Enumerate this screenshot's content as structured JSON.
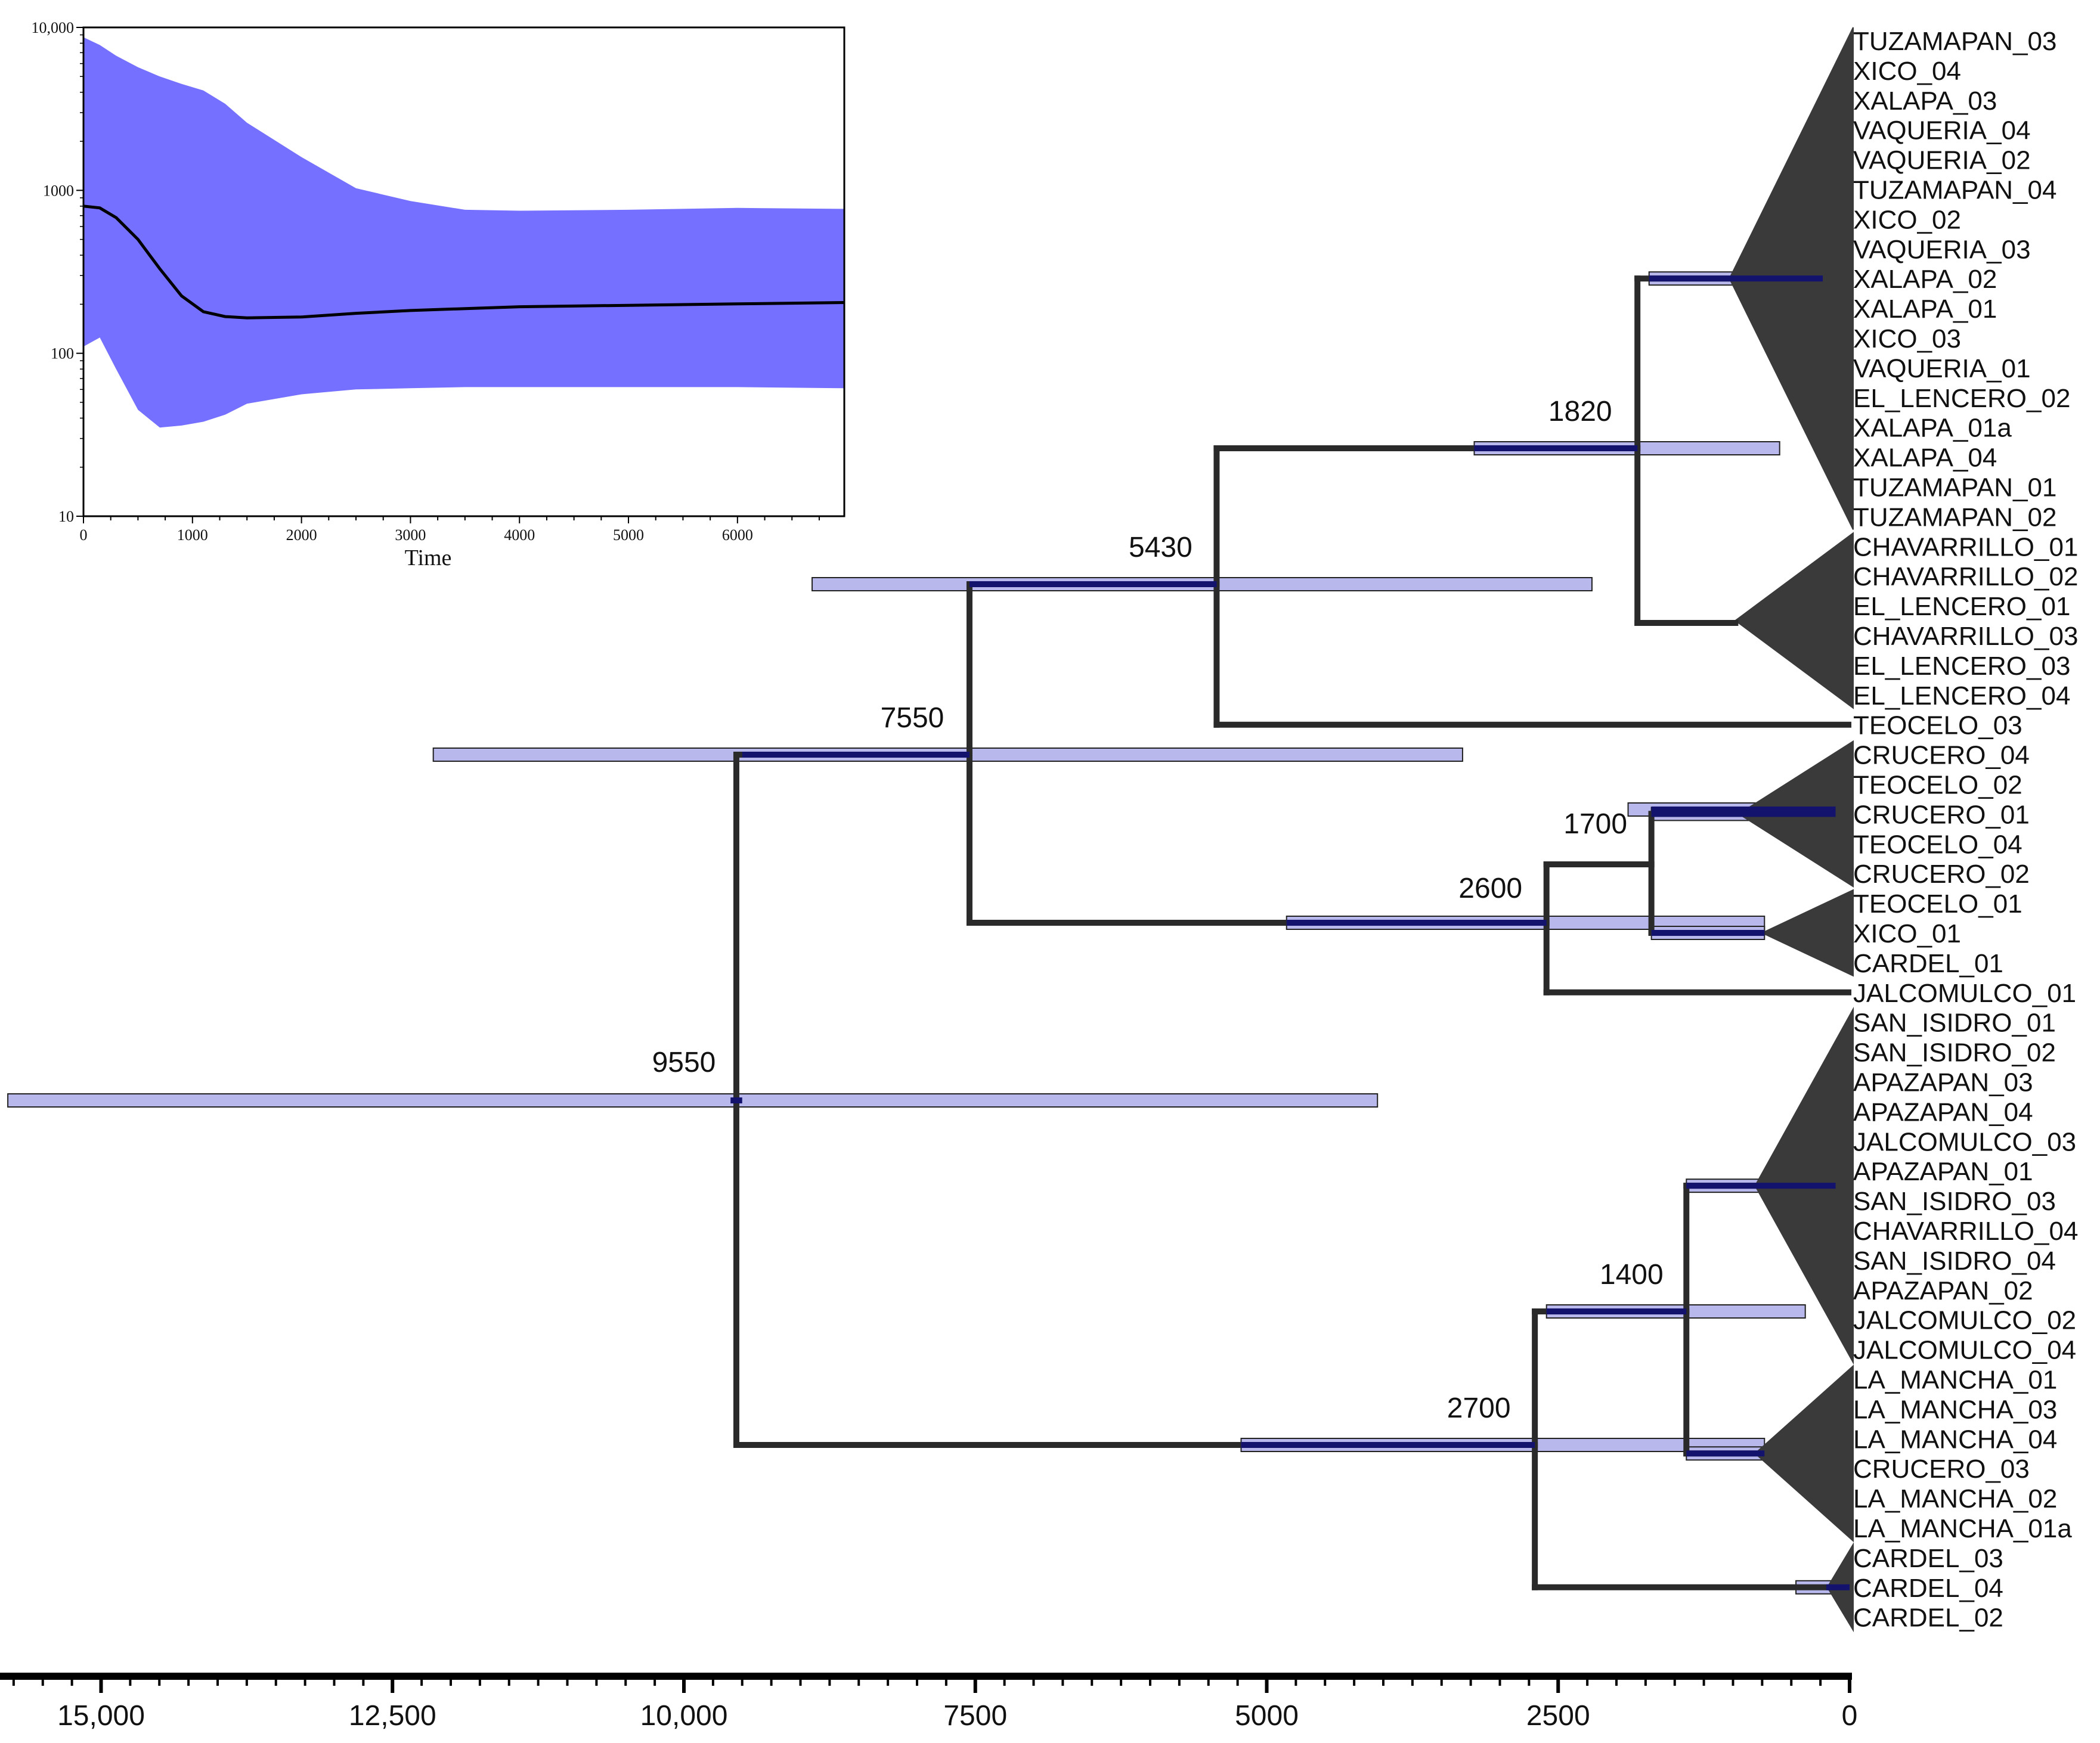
{
  "colors": {
    "branch": "#2a2a2a",
    "hpd_light": "#b8b8ec",
    "hpd_dark": "#13136e",
    "hpd_border": "#222222",
    "clade": "#3a3a3a",
    "bsp_fill": "#7570ff",
    "bsp_line": "#000000",
    "axis": "#000000"
  },
  "tree": {
    "time_axis": {
      "labels": [
        "15,000",
        "12,500",
        "10,000",
        "7500",
        "5000",
        "2500",
        "0"
      ],
      "values": [
        15000,
        12500,
        10000,
        7500,
        5000,
        2500,
        0
      ],
      "domain_max": 15800
    },
    "nodes": [
      {
        "id": "root",
        "age": 9550,
        "label": "9550",
        "hpd": [
          15800,
          4050
        ],
        "hpd_dark": [
          9600,
          9500
        ]
      },
      {
        "id": "n7550",
        "age": 7550,
        "label": "7550",
        "hpd": [
          12150,
          3320
        ],
        "hpd_dark": [
          9500,
          7550
        ]
      },
      {
        "id": "n5430",
        "age": 5430,
        "label": "5430",
        "hpd": [
          8900,
          2210
        ],
        "hpd_dark": [
          7550,
          5430
        ]
      },
      {
        "id": "n1820",
        "age": 1820,
        "label": "1820",
        "hpd": [
          3220,
          600
        ],
        "hpd_dark": [
          3220,
          1820
        ]
      },
      {
        "id": "n2600",
        "age": 2600,
        "label": "2600",
        "hpd": [
          4830,
          730
        ],
        "hpd_dark": [
          4830,
          2600
        ]
      },
      {
        "id": "n1700",
        "age": 1700,
        "label": "1700",
        "hpd": [
          1900,
          120
        ],
        "hpd_dark": [
          1700,
          120
        ]
      },
      {
        "id": "n2700",
        "age": 2700,
        "label": "2700",
        "hpd": [
          5220,
          730
        ],
        "hpd_dark": [
          5220,
          2700
        ]
      },
      {
        "id": "n1400",
        "age": 1400,
        "label": "1400",
        "hpd": [
          2600,
          380
        ],
        "hpd_dark": [
          2600,
          1400
        ]
      }
    ],
    "clades": [
      {
        "name": "clade-xalapa",
        "stem_age": 1720,
        "apex_age": 1030,
        "hpd": [
          1720,
          230
        ],
        "hpd_dark": [
          1720,
          230
        ],
        "taxa": [
          "TUZAMAPAN_03",
          "XICO_04",
          "XALAPA_03",
          "VAQUERIA_04",
          "VAQUERIA_02",
          "TUZAMAPAN_04",
          "XICO_02",
          "VAQUERIA_03",
          "XALAPA_02",
          "XALAPA_01",
          "XICO_03",
          "VAQUERIA_01",
          "EL_LENCERO_02",
          "XALAPA_01a",
          "XALAPA_04",
          "TUZAMAPAN_01",
          "TUZAMAPAN_02"
        ]
      },
      {
        "name": "clade-chavarrillo",
        "stem_age": 1820,
        "apex_age": 980,
        "taxa": [
          "CHAVARRILLO_01",
          "CHAVARRILLO_02",
          "EL_LENCERO_01",
          "CHAVARRILLO_03",
          "EL_LENCERO_03",
          "EL_LENCERO_04"
        ]
      },
      {
        "name": "clade-crucero",
        "stem_age": 1700,
        "apex_age": 950,
        "hpd": [
          1700,
          120
        ],
        "hpd_dark": [
          1700,
          120
        ],
        "taxa": [
          "CRUCERO_04",
          "TEOCELO_02",
          "CRUCERO_01",
          "TEOCELO_04",
          "CRUCERO_02"
        ]
      },
      {
        "name": "clade-teocelo",
        "stem_age": 1700,
        "apex_age": 750,
        "hpd": [
          1700,
          730
        ],
        "hpd_dark": [
          1700,
          730
        ],
        "taxa": [
          "TEOCELO_01",
          "XICO_01",
          "CARDEL_01"
        ]
      },
      {
        "name": "clade-san-isidro",
        "stem_age": 1400,
        "apex_age": 810,
        "hpd": [
          1400,
          120
        ],
        "hpd_dark": [
          1400,
          120
        ],
        "taxa": [
          "SAN_ISIDRO_01",
          "SAN_ISIDRO_02",
          "APAZAPAN_03",
          "APAZAPAN_04",
          "JALCOMULCO_03",
          "APAZAPAN_01",
          "SAN_ISIDRO_03",
          "CHAVARRILLO_04",
          "SAN_ISIDRO_04",
          "APAZAPAN_02",
          "JALCOMULCO_02",
          "JALCOMULCO_04"
        ]
      },
      {
        "name": "clade-la-mancha",
        "stem_age": 1400,
        "apex_age": 810,
        "hpd": [
          1400,
          730
        ],
        "hpd_dark": [
          1400,
          730
        ],
        "taxa": [
          "LA_MANCHA_01",
          "LA_MANCHA_03",
          "LA_MANCHA_04",
          "CRUCERO_03",
          "LA_MANCHA_02",
          "LA_MANCHA_01a"
        ]
      },
      {
        "name": "clade-cardel",
        "stem_age": 2700,
        "apex_age": 190,
        "hpd": [
          460,
          0
        ],
        "hpd_dark": [
          200,
          0
        ],
        "taxa": [
          "CARDEL_03",
          "CARDEL_04",
          "CARDEL_02"
        ]
      }
    ],
    "singletons": [
      {
        "name": "TEOCELO_03",
        "stem_age": 5430
      },
      {
        "name": "JALCOMULCO_01",
        "stem_age": 2600
      }
    ]
  },
  "inset": {
    "xlabel": "Time",
    "xticks": [
      "0",
      "1000",
      "2000",
      "3000",
      "4000",
      "5000",
      "6000"
    ],
    "xtick_values": [
      0,
      1000,
      2000,
      3000,
      4000,
      5000,
      6000
    ],
    "x_max": 6980,
    "yticks": [
      "10",
      "100",
      "1000",
      "10,000"
    ],
    "ytick_values": [
      10,
      100,
      1000,
      10000
    ],
    "bsp": {
      "t": [
        0,
        150,
        300,
        500,
        700,
        900,
        1100,
        1300,
        1500,
        2000,
        2500,
        3000,
        3500,
        4000,
        5000,
        6000,
        6980
      ],
      "upper": [
        8700,
        7800,
        6700,
        5700,
        5000,
        4500,
        4100,
        3400,
        2600,
        1600,
        1030,
        860,
        760,
        750,
        760,
        780,
        770
      ],
      "median": [
        800,
        780,
        680,
        500,
        330,
        225,
        180,
        168,
        165,
        167,
        176,
        183,
        188,
        193,
        197,
        201,
        205
      ],
      "lower": [
        110,
        125,
        80,
        45,
        35,
        36,
        38,
        42,
        49,
        56,
        60,
        61,
        62,
        62,
        62,
        62,
        61
      ]
    }
  }
}
